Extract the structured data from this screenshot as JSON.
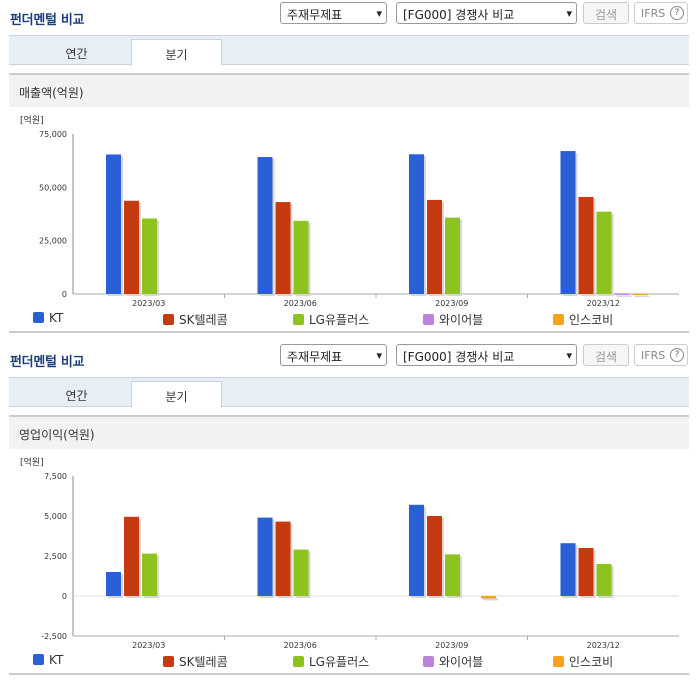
{
  "panels": [
    {
      "title": "펀더멘털 비교",
      "select1": "주재무제표",
      "select2": "[FG000] 경쟁사 비교",
      "search_btn": "검색",
      "ifrs": "IFRS",
      "tabs": [
        "연간",
        "분기"
      ],
      "active_tab": 1,
      "section": "매출액(억원)"
    },
    {
      "title": "펀더멘털 비교",
      "select1": "주재무제표",
      "select2": "[FG000] 경쟁사 비교",
      "search_btn": "검색",
      "ifrs": "IFRS",
      "tabs": [
        "연간",
        "분기"
      ],
      "active_tab": 1,
      "section": "영업이익(억원)"
    }
  ],
  "chart_data": [
    {
      "type": "bar",
      "unit_label": "[억원]",
      "categories": [
        "2023/03",
        "2023/06",
        "2023/09",
        "2023/12"
      ],
      "ylim": [
        0,
        75000
      ],
      "yticks": [
        "75,000",
        "50,000",
        "25,000",
        "0"
      ],
      "ytick_values": [
        75000,
        50000,
        25000,
        0
      ],
      "series": [
        {
          "name": "KT",
          "color": "#2a5fd6",
          "values": [
            65400,
            64200,
            65500,
            67000
          ]
        },
        {
          "name": "SK텔레콤",
          "color": "#c63a10",
          "values": [
            43700,
            43100,
            44100,
            45500
          ]
        },
        {
          "name": "LG유플러스",
          "color": "#8dc21f",
          "values": [
            35400,
            34300,
            35800,
            38600
          ]
        },
        {
          "name": "와이어블",
          "color": "#b983d9",
          "values": [
            0,
            0,
            0,
            300
          ]
        },
        {
          "name": "인스코비",
          "color": "#f5a31a",
          "values": [
            0,
            0,
            0,
            200
          ]
        }
      ]
    },
    {
      "type": "bar",
      "unit_label": "[억원]",
      "categories": [
        "2023/03",
        "2023/06",
        "2023/09",
        "2023/12"
      ],
      "ylim": [
        -2500,
        7500
      ],
      "yticks": [
        "7,500",
        "5,000",
        "2,500",
        "0",
        "-2,500"
      ],
      "ytick_values": [
        7500,
        5000,
        2500,
        0,
        -2500
      ],
      "series": [
        {
          "name": "KT",
          "color": "#2a5fd6",
          "values": [
            1500,
            4900,
            5700,
            3300
          ]
        },
        {
          "name": "SK텔레콤",
          "color": "#c63a10",
          "values": [
            4950,
            4650,
            5000,
            3000
          ]
        },
        {
          "name": "LG유플러스",
          "color": "#8dc21f",
          "values": [
            2650,
            2900,
            2600,
            2000
          ]
        },
        {
          "name": "와이어블",
          "color": "#b983d9",
          "values": [
            0,
            0,
            0,
            0
          ]
        },
        {
          "name": "인스코비",
          "color": "#f5a31a",
          "values": [
            0,
            0,
            -150,
            0
          ]
        }
      ]
    }
  ]
}
